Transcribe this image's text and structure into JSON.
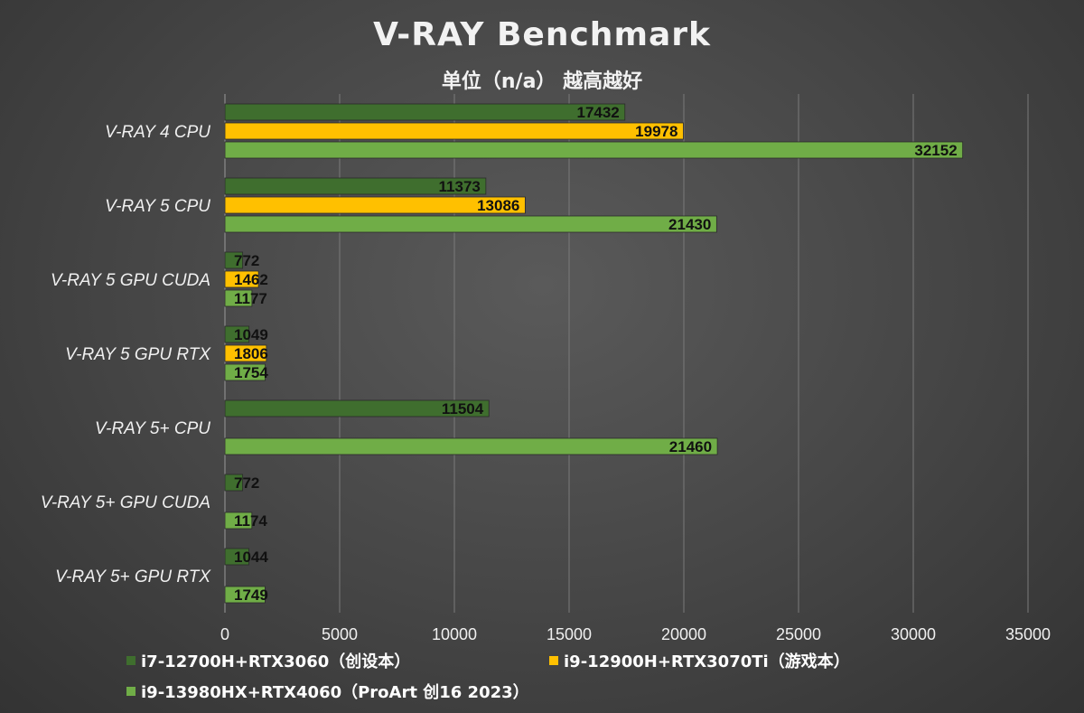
{
  "chart_data": {
    "type": "bar",
    "orientation": "horizontal",
    "title": "V-RAY Benchmark",
    "subtitle": "单位（n/a） 越高越好",
    "categories": [
      "V-RAY 4 CPU",
      "V-RAY 5 CPU",
      "V-RAY 5 GPU CUDA",
      "V-RAY 5 GPU RTX",
      "V-RAY 5+ CPU",
      "V-RAY 5+ GPU CUDA",
      "V-RAY 5+ GPU RTX"
    ],
    "series": [
      {
        "name": "i7-12700H+RTX3060（创设本）",
        "color": "#3f6e2e",
        "values": [
          17432,
          11373,
          772,
          1049,
          11504,
          772,
          1044
        ]
      },
      {
        "name": "i9-12900H+RTX3070Ti（游戏本）",
        "color": "#ffc000",
        "values": [
          19978,
          13086,
          1462,
          1806,
          null,
          null,
          null
        ]
      },
      {
        "name": "i9-13980HX+RTX4060（ProArt 创16 2023）",
        "color": "#70ad47",
        "values": [
          32152,
          21430,
          1177,
          1754,
          21460,
          1174,
          1749
        ]
      }
    ],
    "xlim": [
      0,
      35000
    ],
    "xticks": [
      "0",
      "5000",
      "10000",
      "15000",
      "20000",
      "25000",
      "30000",
      "35000"
    ],
    "grid": true,
    "legend_position": "bottom-left"
  }
}
